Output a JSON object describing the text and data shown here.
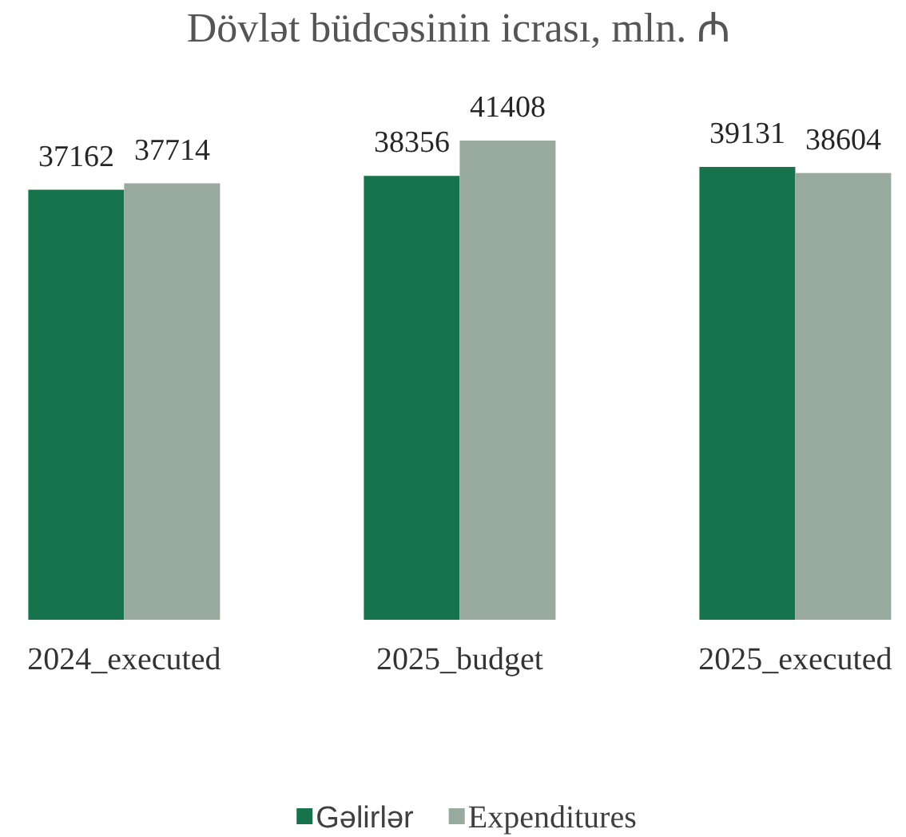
{
  "chart_data": {
    "type": "bar",
    "title": "Dövlət büdcəsinin icrası, mln. ₼",
    "categories": [
      "2024_executed",
      "2025_budget",
      "2025_executed"
    ],
    "series": [
      {
        "name": "Gəlirlər",
        "color": "#17734b",
        "values": [
          37162,
          38356,
          39131
        ]
      },
      {
        "name": "Expenditures",
        "color": "#98aa9e",
        "values": [
          37714,
          41408,
          38604
        ]
      }
    ],
    "data_labels": true,
    "legend": "bottom"
  }
}
